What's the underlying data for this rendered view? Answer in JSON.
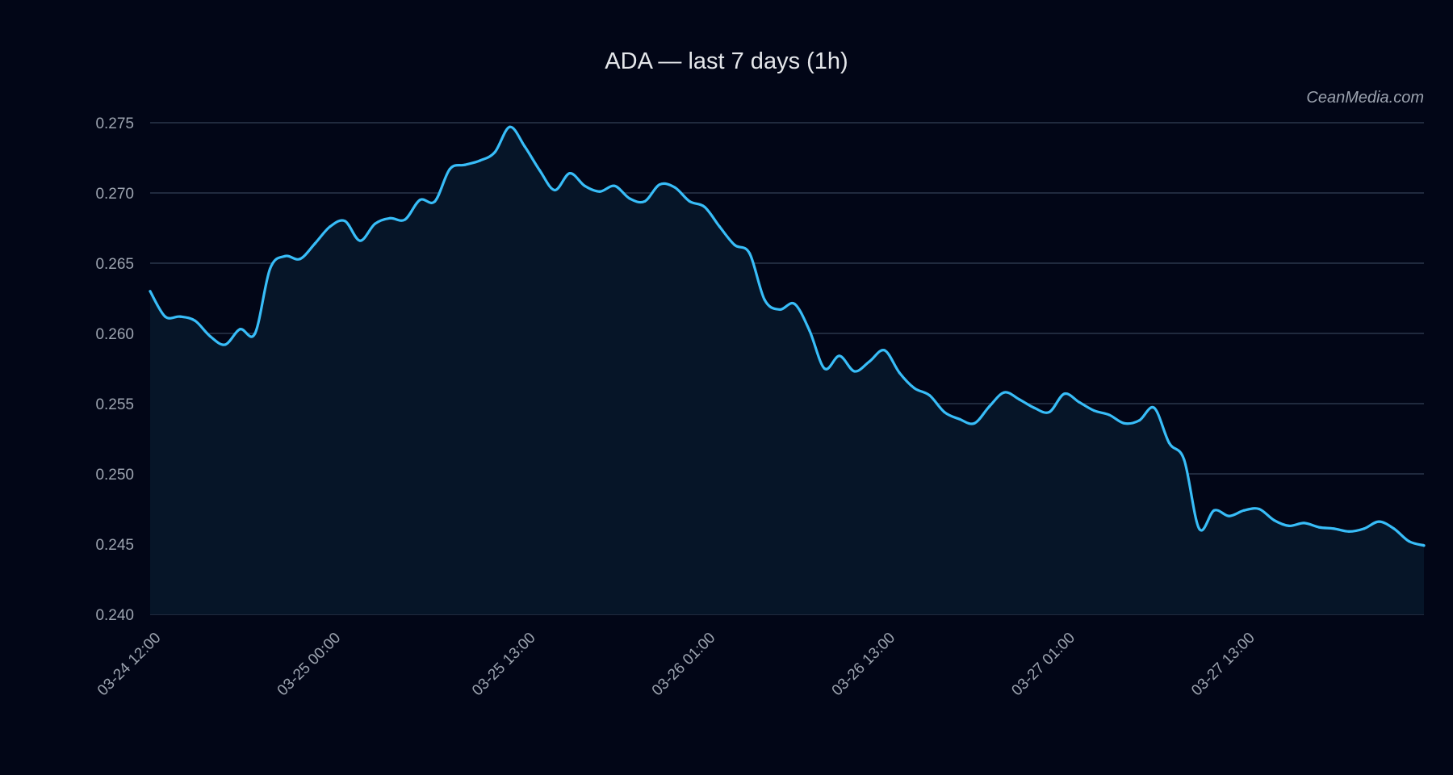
{
  "chart_data": {
    "type": "line",
    "title": "ADA — last 7 days (1h)",
    "watermark": "CeanMedia.com",
    "xlabel": "",
    "ylabel": "",
    "ylim": [
      0.24,
      0.275
    ],
    "yticks": [
      "0.240",
      "0.245",
      "0.250",
      "0.255",
      "0.260",
      "0.265",
      "0.270",
      "0.275"
    ],
    "xticks": [
      {
        "label": "03-24 12:00",
        "index": 0
      },
      {
        "label": "03-25 00:00",
        "index": 12
      },
      {
        "label": "03-25 13:00",
        "index": 25
      },
      {
        "label": "03-26 01:00",
        "index": 37
      },
      {
        "label": "03-26 13:00",
        "index": 49
      },
      {
        "label": "03-27 01:00",
        "index": 61
      },
      {
        "label": "03-27 13:00",
        "index": 73
      }
    ],
    "grid": "horizontal",
    "line_color": "#38bdf8",
    "fill_color": "#061528",
    "background": "#020617",
    "series": [
      {
        "values": [
          0.263,
          0.2612,
          0.2612,
          0.2609,
          0.2598,
          0.2592,
          0.2603,
          0.26,
          0.2646,
          0.2655,
          0.2653,
          0.2664,
          0.2676,
          0.268,
          0.2666,
          0.2678,
          0.2682,
          0.2681,
          0.2695,
          0.2694,
          0.2717,
          0.272,
          0.2723,
          0.2729,
          0.2747,
          0.2733,
          0.2716,
          0.2702,
          0.2714,
          0.2705,
          0.2701,
          0.2705,
          0.2696,
          0.2694,
          0.2706,
          0.2704,
          0.2694,
          0.269,
          0.2676,
          0.2663,
          0.2657,
          0.2624,
          0.2617,
          0.2621,
          0.2602,
          0.2575,
          0.2584,
          0.2573,
          0.258,
          0.2588,
          0.2572,
          0.2561,
          0.2556,
          0.2544,
          0.2539,
          0.2536,
          0.2548,
          0.2558,
          0.2553,
          0.2547,
          0.2544,
          0.2557,
          0.2551,
          0.2545,
          0.2542,
          0.2536,
          0.2538,
          0.2547,
          0.2522,
          0.251,
          0.2461,
          0.2474,
          0.247,
          0.2474,
          0.2475,
          0.2467,
          0.2463,
          0.2465,
          0.2462,
          0.2461,
          0.2459,
          0.2461,
          0.2466,
          0.2461,
          0.2452,
          0.2449
        ]
      }
    ]
  }
}
